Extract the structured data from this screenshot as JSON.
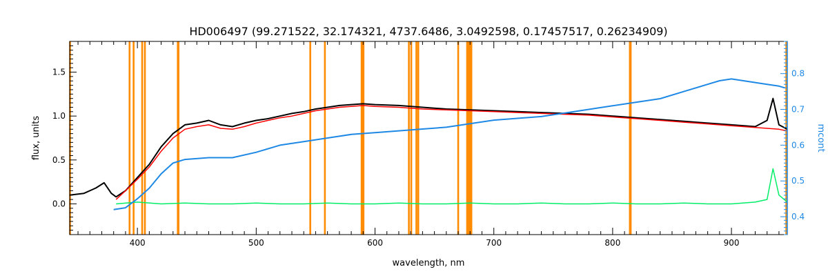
{
  "chart_data": {
    "type": "line",
    "title": "HD006497    (99.271522, 32.174321, 4737.6486, 3.0492598, 0.17457517, 0.26234909)",
    "xlabel": "wavelength, nm",
    "ylabel": "flux, units",
    "y2label": "mcont",
    "xlim": [
      343,
      947
    ],
    "ylim": [
      -0.35,
      1.85
    ],
    "y2lim": [
      0.35,
      0.89
    ],
    "x_ticks": [
      400,
      500,
      600,
      700,
      800,
      900
    ],
    "y_ticks": [
      0.0,
      0.5,
      1.0,
      1.5
    ],
    "y_tick_labels": [
      "0.0",
      "0.5",
      "1.0",
      "1.5"
    ],
    "y2_ticks": [
      0.4,
      0.5,
      0.6,
      0.7,
      0.8
    ],
    "y2_tick_labels": [
      "0.4",
      "0.5",
      "0.6",
      "0.7",
      "0.8"
    ],
    "grid": false,
    "masked_regions_nm": [
      343.3,
      393.4,
      396.8,
      404.0,
      406.3,
      434.0,
      434.6,
      545.5,
      557.8,
      588.7,
      589.3,
      589.9,
      590.3,
      628.5,
      630.5,
      634.8,
      636.4,
      670.0,
      677.5,
      678.1,
      678.7,
      679.3,
      679.9,
      680.5,
      681.1,
      814.5,
      815.2,
      946.2
    ],
    "series": [
      {
        "role": "observed",
        "color": "#000000",
        "x": [
          343,
          355,
          365,
          372,
          378,
          382,
          390,
          400,
          410,
          420,
          430,
          440,
          450,
          460,
          470,
          480,
          490,
          500,
          510,
          520,
          530,
          540,
          550,
          560,
          570,
          580,
          590,
          600,
          620,
          640,
          660,
          680,
          700,
          720,
          740,
          760,
          780,
          800,
          820,
          840,
          860,
          880,
          900,
          920,
          930,
          935,
          940,
          947
        ],
        "y": [
          0.1,
          0.12,
          0.18,
          0.24,
          0.12,
          0.08,
          0.15,
          0.3,
          0.45,
          0.65,
          0.8,
          0.9,
          0.92,
          0.95,
          0.9,
          0.88,
          0.92,
          0.95,
          0.97,
          1.0,
          1.03,
          1.05,
          1.08,
          1.1,
          1.12,
          1.13,
          1.14,
          1.13,
          1.12,
          1.1,
          1.08,
          1.07,
          1.06,
          1.05,
          1.04,
          1.03,
          1.02,
          1.0,
          0.98,
          0.96,
          0.94,
          0.92,
          0.9,
          0.88,
          0.95,
          1.2,
          0.9,
          0.85
        ]
      },
      {
        "role": "model",
        "color": "#ff0000",
        "x": [
          382,
          390,
          400,
          410,
          420,
          430,
          440,
          450,
          460,
          470,
          480,
          490,
          500,
          510,
          520,
          530,
          540,
          550,
          560,
          570,
          580,
          590,
          600,
          620,
          640,
          660,
          680,
          700,
          720,
          740,
          760,
          780,
          800,
          820,
          840,
          860,
          880,
          900,
          920,
          940,
          947
        ],
        "y": [
          0.05,
          0.15,
          0.28,
          0.42,
          0.6,
          0.75,
          0.85,
          0.88,
          0.9,
          0.86,
          0.85,
          0.88,
          0.92,
          0.95,
          0.98,
          1.0,
          1.03,
          1.06,
          1.08,
          1.1,
          1.11,
          1.12,
          1.11,
          1.1,
          1.08,
          1.07,
          1.06,
          1.05,
          1.04,
          1.03,
          1.02,
          1.01,
          0.99,
          0.97,
          0.95,
          0.93,
          0.91,
          0.89,
          0.87,
          0.85,
          0.83
        ]
      },
      {
        "role": "residual",
        "color": "#00ee66",
        "x": [
          382,
          400,
          420,
          440,
          460,
          480,
          500,
          520,
          540,
          560,
          580,
          600,
          620,
          640,
          660,
          680,
          700,
          720,
          740,
          760,
          780,
          800,
          820,
          840,
          860,
          880,
          900,
          920,
          930,
          935,
          940,
          947
        ],
        "y": [
          0.0,
          0.02,
          0.0,
          0.01,
          0.0,
          0.0,
          0.01,
          0.0,
          0.0,
          0.01,
          0.0,
          0.0,
          0.01,
          0.0,
          0.0,
          0.01,
          0.0,
          0.0,
          0.01,
          0.0,
          0.0,
          0.01,
          0.0,
          0.0,
          0.01,
          0.0,
          0.0,
          0.02,
          0.05,
          0.4,
          0.1,
          0.02
        ]
      },
      {
        "role": "mcont",
        "axis": "right",
        "color": "#1e88e5",
        "x": [
          380,
          390,
          400,
          410,
          420,
          430,
          440,
          460,
          480,
          500,
          520,
          540,
          560,
          580,
          600,
          620,
          640,
          660,
          680,
          700,
          720,
          740,
          760,
          780,
          800,
          820,
          840,
          860,
          880,
          890,
          900,
          910,
          920,
          930,
          940,
          945
        ],
        "y": [
          0.42,
          0.425,
          0.45,
          0.48,
          0.52,
          0.55,
          0.56,
          0.565,
          0.565,
          0.58,
          0.6,
          0.61,
          0.62,
          0.63,
          0.635,
          0.64,
          0.645,
          0.65,
          0.66,
          0.67,
          0.675,
          0.68,
          0.69,
          0.7,
          0.71,
          0.72,
          0.73,
          0.75,
          0.77,
          0.78,
          0.785,
          0.78,
          0.775,
          0.77,
          0.765,
          0.76
        ]
      }
    ],
    "colors": {
      "mask": "#ff8c00",
      "axis": "#000000",
      "right_axis": "#1e88e5"
    }
  }
}
